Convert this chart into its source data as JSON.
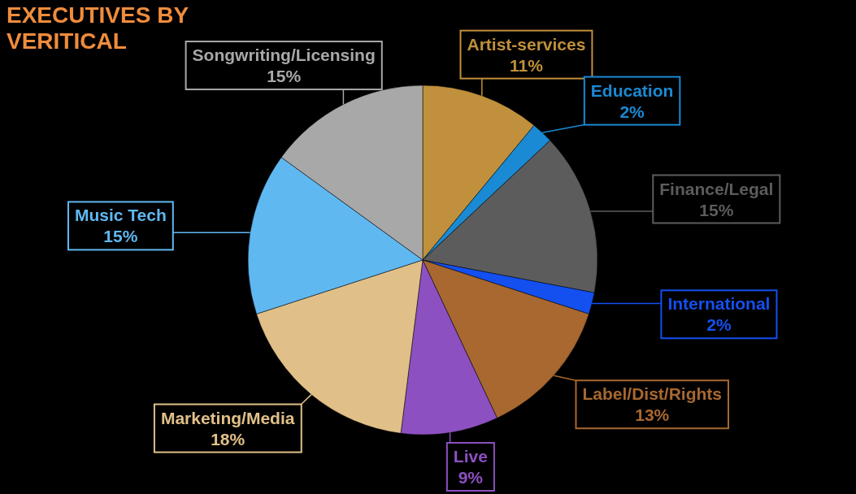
{
  "chart_data": {
    "type": "pie",
    "title": "EXECUTIVES BY VERITICAL",
    "categories": [
      "Artist-services",
      "Education",
      "Finance/Legal",
      "International",
      "Label/Dist/Rights",
      "Live",
      "Marketing/Media",
      "Music Tech",
      "Songwriting/Licensing"
    ],
    "values": [
      11,
      2,
      15,
      2,
      13,
      9,
      18,
      15,
      15
    ],
    "colors": [
      "#c0903c",
      "#1a8ad4",
      "#5c5c5c",
      "#1450f0",
      "#a86830",
      "#8c50c0",
      "#e0c088",
      "#60b8f0",
      "#a8a8a8"
    ],
    "value_labels": [
      "11%",
      "2%",
      "15%",
      "2%",
      "13%",
      "9%",
      "18%",
      "15%",
      "15%"
    ]
  }
}
